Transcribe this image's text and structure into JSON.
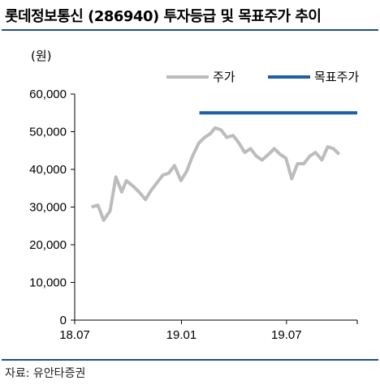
{
  "title": "롯데정보통신 (286940) 투자등급 및 목표주가 추이",
  "source": "자료: 유안타증권",
  "chart_data": {
    "type": "line",
    "title": "롯데정보통신 (286940) 투자등급 및 목표주가 추이",
    "ylabel": "(원)",
    "xlabel": "",
    "ylim": [
      0,
      60000
    ],
    "yticks": [
      "60,000",
      "50,000",
      "40,000",
      "30,000",
      "20,000",
      "10,000",
      "0"
    ],
    "ytick_values": [
      60000,
      50000,
      40000,
      30000,
      20000,
      10000,
      0
    ],
    "xticks": [
      "18.07",
      "19.01",
      "19.07"
    ],
    "xlim": [
      "2018-07-01",
      "2019-10-31"
    ],
    "grid": false,
    "legend_position": "top-right",
    "series": [
      {
        "name": "주가",
        "color": "#bcbcbc",
        "x": [
          "2018-07-30",
          "2018-08-10",
          "2018-08-20",
          "2018-08-31",
          "2018-09-10",
          "2018-09-20",
          "2018-09-28",
          "2018-10-10",
          "2018-10-20",
          "2018-10-31",
          "2018-11-10",
          "2018-11-20",
          "2018-11-30",
          "2018-12-10",
          "2018-12-20",
          "2018-12-31",
          "2019-01-10",
          "2019-01-20",
          "2019-01-31",
          "2019-02-10",
          "2019-02-20",
          "2019-02-28",
          "2019-03-10",
          "2019-03-20",
          "2019-03-31",
          "2019-04-10",
          "2019-04-20",
          "2019-04-30",
          "2019-05-10",
          "2019-05-20",
          "2019-05-31",
          "2019-06-10",
          "2019-06-20",
          "2019-06-30",
          "2019-07-10",
          "2019-07-20",
          "2019-07-31",
          "2019-08-10",
          "2019-08-20",
          "2019-08-31",
          "2019-09-10",
          "2019-09-20",
          "2019-09-30"
        ],
        "values": [
          30000,
          30500,
          26500,
          29000,
          38000,
          34000,
          37000,
          35500,
          34000,
          32000,
          34500,
          36500,
          38500,
          39000,
          41000,
          37000,
          39500,
          43500,
          47000,
          48500,
          49500,
          51000,
          50500,
          48500,
          49000,
          47000,
          44500,
          45500,
          43500,
          42500,
          44000,
          45500,
          44000,
          43000,
          37500,
          41500,
          41500,
          43500,
          44500,
          42500,
          46000,
          45500,
          44000
        ]
      },
      {
        "name": "목표주가",
        "color": "#1f5fa8",
        "x": [
          "2019-02-01",
          "2019-10-31"
        ],
        "values": [
          55000,
          55000
        ]
      }
    ]
  }
}
